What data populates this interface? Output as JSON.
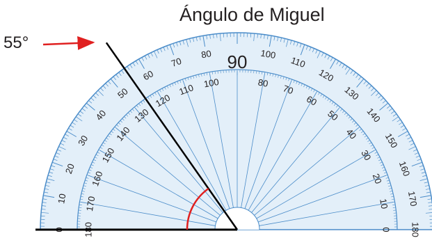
{
  "title": "Ángulo de Miguel",
  "angle_label": "55°",
  "protractor": {
    "min_degrees": 0,
    "max_degrees": 180,
    "center_label": "90",
    "outer_scale": [
      "0",
      "10",
      "20",
      "30",
      "40",
      "50",
      "60",
      "70",
      "80",
      "100",
      "110",
      "120",
      "130",
      "140",
      "150",
      "160",
      "170",
      "180"
    ],
    "inner_scale": [
      "180",
      "170",
      "160",
      "150",
      "140",
      "130",
      "120",
      "110",
      "100",
      "80",
      "70",
      "60",
      "50",
      "40",
      "30",
      "20",
      "10",
      "0"
    ]
  },
  "angle": {
    "vertex_degrees_from_left": 0,
    "ray_degrees": 55
  },
  "colors": {
    "protractor_fill": "#e3eff9",
    "protractor_stroke": "#4a8cc9",
    "ray": "#000000",
    "arc": "#e02020",
    "pointer": "#e02020"
  }
}
